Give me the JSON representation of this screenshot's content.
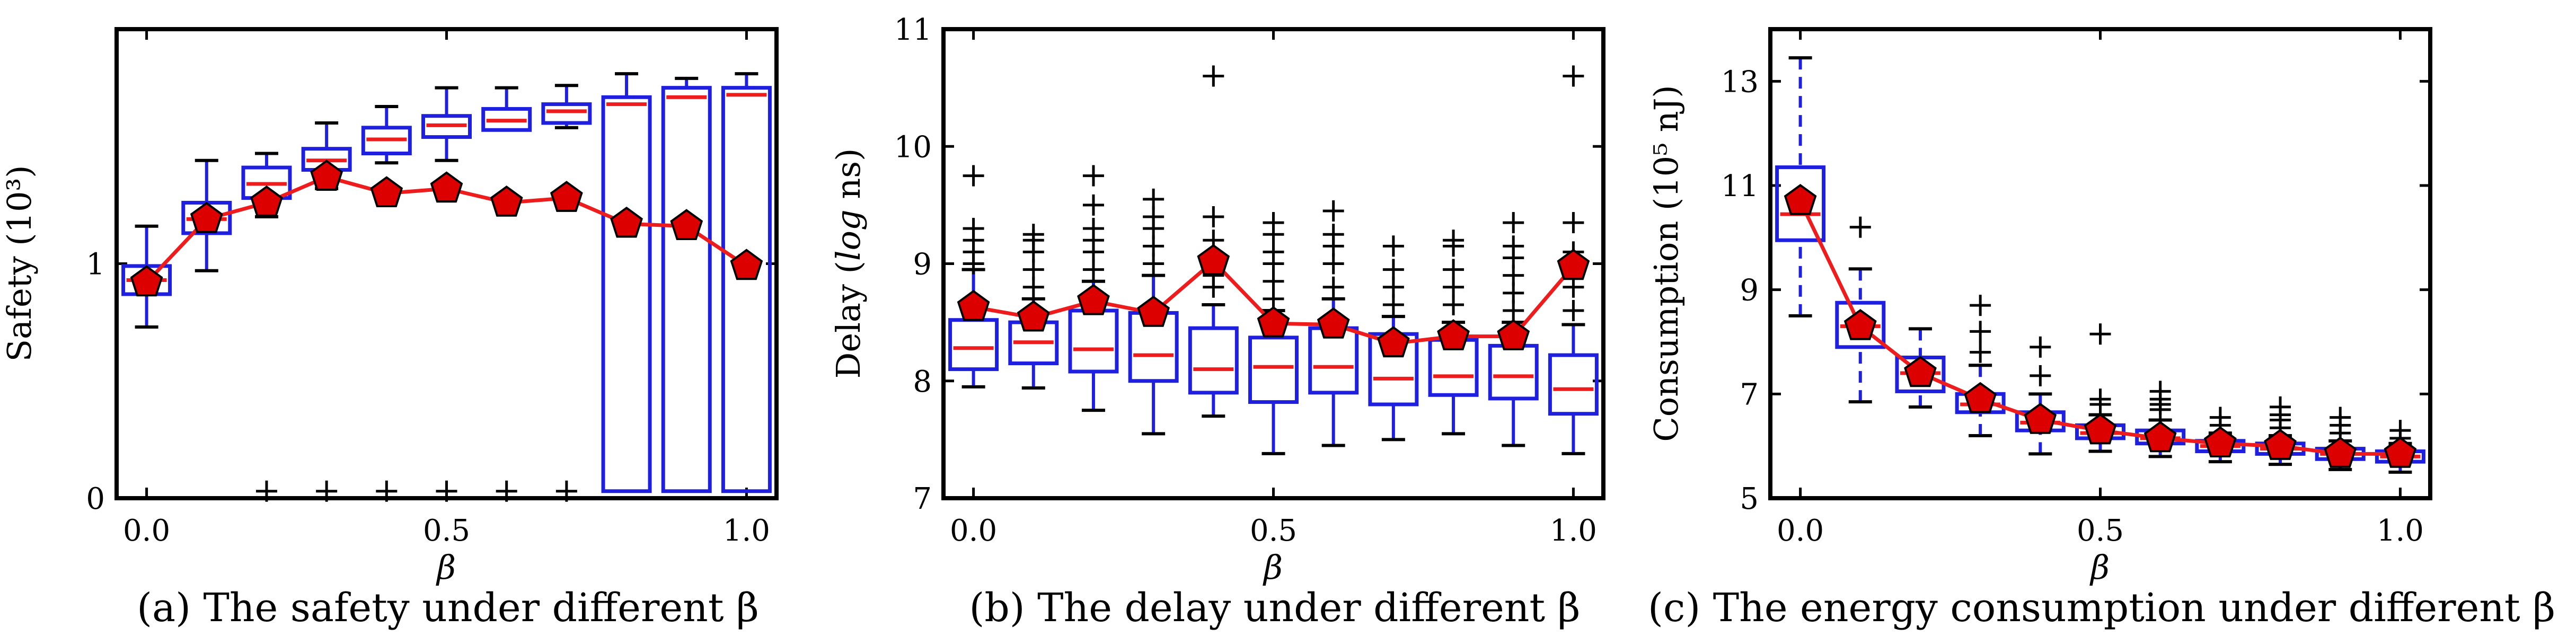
{
  "captions": [
    "(a) The safety under different β",
    "(b) The delay under different β",
    "(c) The energy consumption under different β"
  ],
  "colors": {
    "box": "#1f1fdf",
    "median": "#ee1c1c",
    "mean_line": "#ee1c1c",
    "marker_fill": "#dd0000",
    "outlier": "#000000"
  },
  "chart_data": [
    {
      "type": "box",
      "caption": "(a) The safety under different β",
      "xlabel": "β",
      "ylabel": "Safety (10³)",
      "xlim": [
        -0.05,
        1.05
      ],
      "ylim": [
        0,
        2.0
      ],
      "xticks": [
        0.0,
        0.5,
        1.0
      ],
      "xtick_labels": [
        "0.0",
        "0.5",
        "1.0"
      ],
      "yticks": [
        0,
        1
      ],
      "ytick_labels": [
        "0",
        "1"
      ],
      "x": [
        0.0,
        0.1,
        0.2,
        0.3,
        0.4,
        0.5,
        0.6,
        0.7,
        0.8,
        0.9,
        1.0
      ],
      "boxes": [
        {
          "wlo": 0.73,
          "q1": 0.87,
          "med": 0.93,
          "q3": 0.99,
          "whi": 1.16,
          "outliers": []
        },
        {
          "wlo": 0.97,
          "q1": 1.13,
          "med": 1.19,
          "q3": 1.26,
          "whi": 1.44,
          "outliers": []
        },
        {
          "wlo": 1.2,
          "q1": 1.28,
          "med": 1.34,
          "q3": 1.41,
          "whi": 1.47,
          "outliers": [
            0.03
          ]
        },
        {
          "wlo": 1.32,
          "q1": 1.4,
          "med": 1.44,
          "q3": 1.49,
          "whi": 1.6,
          "outliers": [
            0.03
          ]
        },
        {
          "wlo": 1.43,
          "q1": 1.47,
          "med": 1.53,
          "q3": 1.58,
          "whi": 1.67,
          "outliers": [
            0.03
          ]
        },
        {
          "wlo": 1.44,
          "q1": 1.54,
          "med": 1.59,
          "q3": 1.63,
          "whi": 1.75,
          "outliers": [
            0.03
          ]
        },
        {
          "wlo": 1.57,
          "q1": 1.57,
          "med": 1.61,
          "q3": 1.66,
          "whi": 1.75,
          "outliers": [
            0.03
          ]
        },
        {
          "wlo": 1.58,
          "q1": 1.6,
          "med": 1.65,
          "q3": 1.68,
          "whi": 1.76,
          "outliers": [
            0.03
          ]
        },
        {
          "wlo": 0.03,
          "q1": 0.03,
          "med": 1.68,
          "q3": 1.71,
          "whi": 1.81,
          "outliers": []
        },
        {
          "wlo": 0.03,
          "q1": 0.03,
          "med": 1.71,
          "q3": 1.75,
          "whi": 1.79,
          "outliers": []
        },
        {
          "wlo": 0.03,
          "q1": 0.03,
          "med": 1.72,
          "q3": 1.75,
          "whi": 1.81,
          "outliers": []
        }
      ],
      "mean": [
        0.92,
        1.19,
        1.26,
        1.37,
        1.3,
        1.32,
        1.26,
        1.28,
        1.17,
        1.16,
        0.99
      ]
    },
    {
      "type": "box",
      "caption": "(b) The delay under different β",
      "xlabel": "β",
      "ylabel": "Delay (log ns)",
      "ylabel_prefix": "Delay (",
      "ylabel_italic": "log",
      "ylabel_suffix": " ns)",
      "xlim": [
        -0.05,
        1.05
      ],
      "ylim": [
        7,
        11
      ],
      "xticks": [
        0.0,
        0.5,
        1.0
      ],
      "xtick_labels": [
        "0.0",
        "0.5",
        "1.0"
      ],
      "yticks": [
        7,
        8,
        9,
        10,
        11
      ],
      "ytick_labels": [
        "7",
        "8",
        "9",
        "10",
        "11"
      ],
      "x": [
        0.0,
        0.1,
        0.2,
        0.3,
        0.4,
        0.5,
        0.6,
        0.7,
        0.8,
        0.9,
        1.0
      ],
      "boxes": [
        {
          "wlo": 7.95,
          "q1": 8.1,
          "med": 8.28,
          "q3": 8.52,
          "whi": 8.95,
          "outliers": [
            9.0,
            9.1,
            9.2,
            9.3,
            9.75
          ]
        },
        {
          "wlo": 7.94,
          "q1": 8.15,
          "med": 8.33,
          "q3": 8.5,
          "whi": 8.7,
          "outliers": [
            8.8,
            8.95,
            9.1,
            9.2,
            9.25
          ]
        },
        {
          "wlo": 7.75,
          "q1": 8.08,
          "med": 8.27,
          "q3": 8.6,
          "whi": 8.85,
          "outliers": [
            8.95,
            9.1,
            9.2,
            9.3,
            9.5,
            9.75
          ]
        },
        {
          "wlo": 7.55,
          "q1": 8.0,
          "med": 8.22,
          "q3": 8.58,
          "whi": 8.9,
          "outliers": [
            9.0,
            9.15,
            9.3,
            9.4,
            9.55
          ]
        },
        {
          "wlo": 7.7,
          "q1": 7.9,
          "med": 8.1,
          "q3": 8.45,
          "whi": 8.65,
          "outliers": [
            8.8,
            8.9,
            9.05,
            9.2,
            9.4,
            10.6
          ]
        },
        {
          "wlo": 7.38,
          "q1": 7.82,
          "med": 8.12,
          "q3": 8.37,
          "whi": 8.6,
          "outliers": [
            8.7,
            8.85,
            9.0,
            9.1,
            9.25,
            9.35
          ]
        },
        {
          "wlo": 7.45,
          "q1": 7.9,
          "med": 8.12,
          "q3": 8.45,
          "whi": 8.7,
          "outliers": [
            8.8,
            9.0,
            9.15,
            9.25,
            9.45
          ]
        },
        {
          "wlo": 7.5,
          "q1": 7.8,
          "med": 8.02,
          "q3": 8.4,
          "whi": 8.55,
          "outliers": [
            8.65,
            8.8,
            8.95,
            9.15
          ]
        },
        {
          "wlo": 7.55,
          "q1": 7.88,
          "med": 8.04,
          "q3": 8.35,
          "whi": 8.5,
          "outliers": [
            8.65,
            8.8,
            8.95,
            9.15,
            9.2
          ]
        },
        {
          "wlo": 7.45,
          "q1": 7.85,
          "med": 8.04,
          "q3": 8.3,
          "whi": 8.5,
          "outliers": [
            8.6,
            8.75,
            8.9,
            9.05,
            9.15,
            9.35
          ]
        },
        {
          "wlo": 7.38,
          "q1": 7.72,
          "med": 7.93,
          "q3": 8.22,
          "whi": 8.48,
          "outliers": [
            8.6,
            8.8,
            9.1,
            9.35,
            10.6
          ]
        }
      ],
      "mean": [
        8.63,
        8.54,
        8.68,
        8.58,
        9.02,
        8.49,
        8.48,
        8.32,
        8.38,
        8.38,
        8.98
      ]
    },
    {
      "type": "box",
      "caption": "(c) The energy consumption under different β",
      "xlabel": "β",
      "ylabel": "Consumption (10⁵ nJ)",
      "xlim": [
        -0.05,
        1.05
      ],
      "ylim": [
        5,
        14
      ],
      "xticks": [
        0.0,
        0.5,
        1.0
      ],
      "xtick_labels": [
        "0.0",
        "0.5",
        "1.0"
      ],
      "yticks": [
        5,
        7,
        9,
        11,
        13
      ],
      "ytick_labels": [
        "5",
        "7",
        "9",
        "11",
        "13"
      ],
      "x": [
        0.0,
        0.1,
        0.2,
        0.3,
        0.4,
        0.5,
        0.6,
        0.7,
        0.8,
        0.9,
        1.0
      ],
      "boxes": [
        {
          "wlo": 8.5,
          "q1": 9.95,
          "med": 10.45,
          "q3": 11.35,
          "whi": 13.45,
          "outliers": []
        },
        {
          "wlo": 6.85,
          "q1": 7.9,
          "med": 8.3,
          "q3": 8.75,
          "whi": 9.4,
          "outliers": [
            10.2
          ]
        },
        {
          "wlo": 6.75,
          "q1": 7.05,
          "med": 7.4,
          "q3": 7.7,
          "whi": 8.25,
          "outliers": []
        },
        {
          "wlo": 6.2,
          "q1": 6.65,
          "med": 6.8,
          "q3": 7.0,
          "whi": 7.55,
          "outliers": [
            7.8,
            8.2,
            8.7
          ]
        },
        {
          "wlo": 5.85,
          "q1": 6.3,
          "med": 6.45,
          "q3": 6.65,
          "whi": 7.0,
          "outliers": [
            7.35,
            7.9
          ]
        },
        {
          "wlo": 5.9,
          "q1": 6.15,
          "med": 6.25,
          "q3": 6.4,
          "whi": 6.6,
          "outliers": [
            6.8,
            6.9,
            8.15
          ]
        },
        {
          "wlo": 5.8,
          "q1": 6.05,
          "med": 6.15,
          "q3": 6.3,
          "whi": 6.5,
          "outliers": [
            6.7,
            6.8,
            6.9,
            7.05
          ]
        },
        {
          "wlo": 5.7,
          "q1": 5.9,
          "med": 6.0,
          "q3": 6.1,
          "whi": 6.25,
          "outliers": [
            6.4,
            6.55
          ]
        },
        {
          "wlo": 5.65,
          "q1": 5.85,
          "med": 5.95,
          "q3": 6.05,
          "whi": 6.2,
          "outliers": [
            6.35,
            6.5,
            6.6,
            6.75
          ]
        },
        {
          "wlo": 5.55,
          "q1": 5.75,
          "med": 5.85,
          "q3": 5.95,
          "whi": 6.1,
          "outliers": [
            6.25,
            6.4,
            6.55
          ]
        },
        {
          "wlo": 5.5,
          "q1": 5.7,
          "med": 5.8,
          "q3": 5.9,
          "whi": 6.05,
          "outliers": [
            6.15,
            6.3
          ]
        }
      ],
      "mean": [
        10.7,
        8.3,
        7.4,
        6.9,
        6.5,
        6.3,
        6.15,
        6.05,
        6.0,
        5.85,
        5.85
      ]
    }
  ]
}
